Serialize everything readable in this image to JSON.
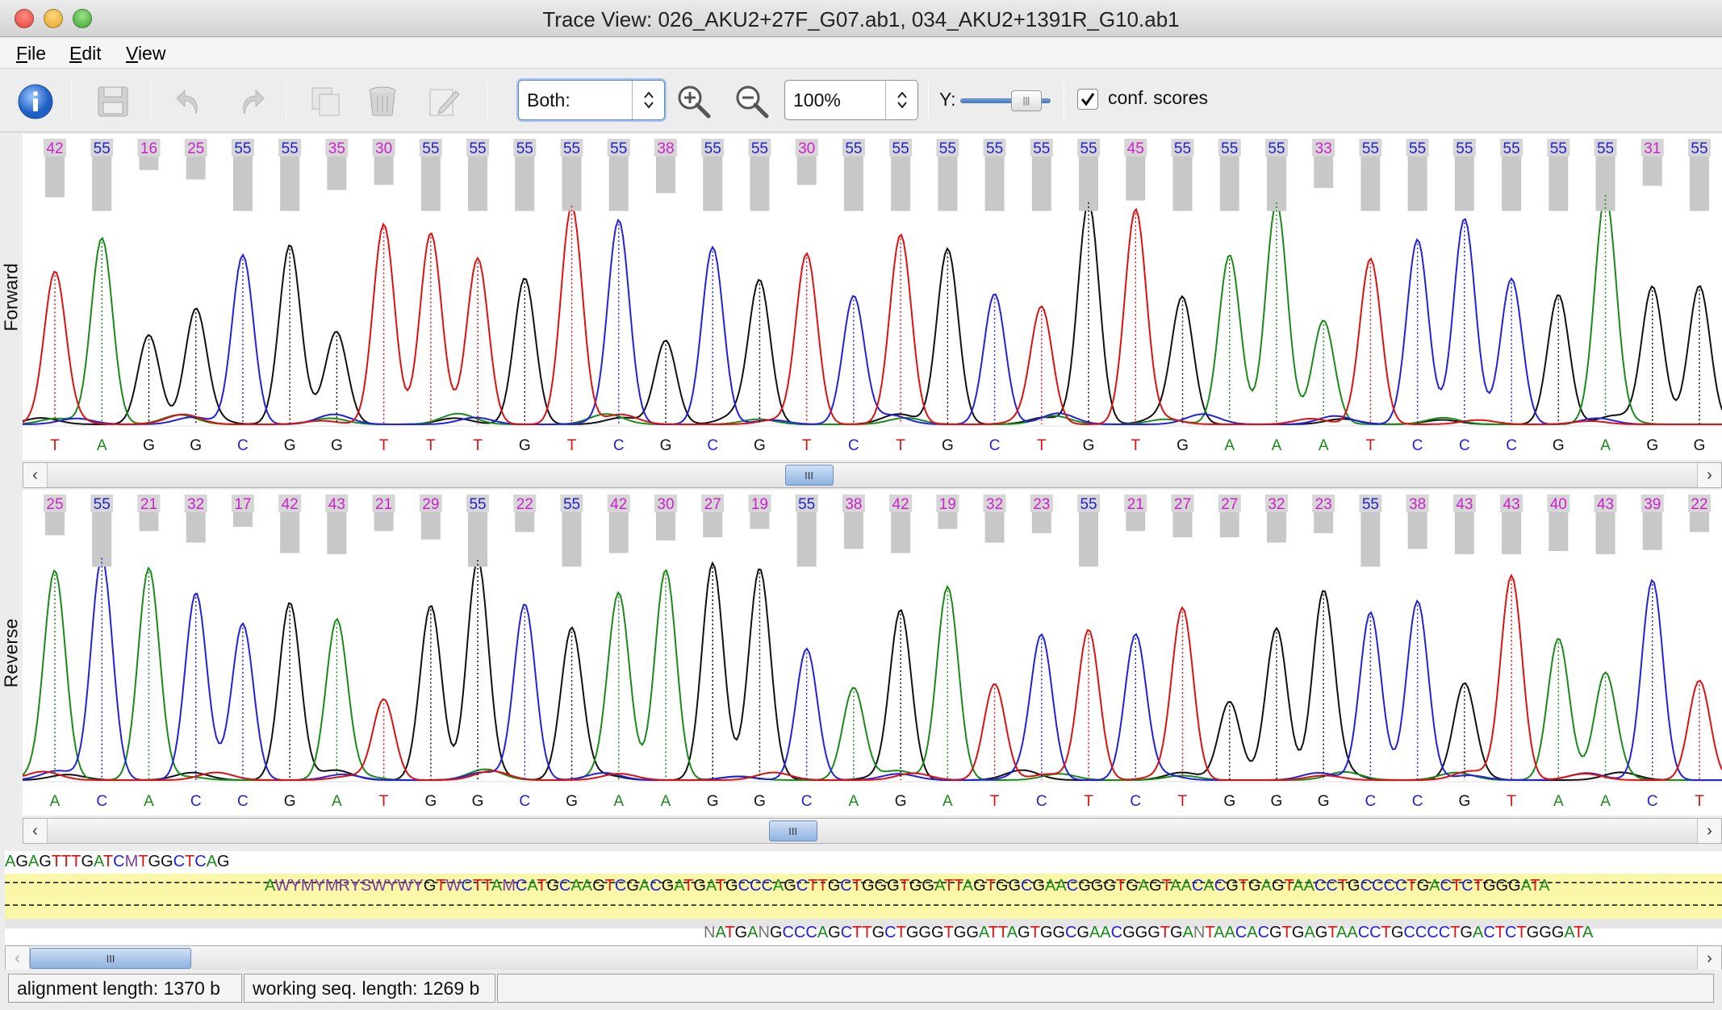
{
  "window": {
    "title": "Trace View: 026_AKU2+27F_G07.ab1, 034_AKU2+1391R_G10.ab1"
  },
  "menubar": {
    "items": [
      {
        "label": "File",
        "mnemonic": "F",
        "rest": "ile"
      },
      {
        "label": "Edit",
        "mnemonic": "E",
        "rest": "dit"
      },
      {
        "label": "View",
        "mnemonic": "V",
        "rest": "iew"
      }
    ]
  },
  "toolbar": {
    "strand_select": "Both:",
    "zoom_select": "100%",
    "y_label": "Y:",
    "y_scale_fraction": 0.85,
    "conf_label": "conf. scores",
    "conf_checked": true,
    "icons": [
      "info-icon",
      "save-icon",
      "undo-icon",
      "redo-icon",
      "copy-icon",
      "delete-icon",
      "edit-icon",
      "zoom-in-icon",
      "zoom-out-icon"
    ]
  },
  "colors": {
    "A": "#1a8a1a",
    "C": "#2222dd",
    "G": "#111111",
    "T": "#dd1111",
    "score": "#cc22cc",
    "score_high": "#2222cc",
    "bar": "#c8c8c8"
  },
  "forward": {
    "label": "Forward",
    "scores": [
      42,
      55,
      16,
      25,
      55,
      55,
      35,
      30,
      55,
      55,
      55,
      55,
      55,
      38,
      55,
      55,
      30,
      55,
      55,
      55,
      55,
      55,
      55,
      45,
      55,
      55,
      55,
      33,
      55,
      55,
      55,
      55,
      55,
      55,
      31,
      55
    ],
    "bases": [
      "T",
      "A",
      "G",
      "G",
      "C",
      "G",
      "G",
      "T",
      "T",
      "T",
      "G",
      "T",
      "C",
      "G",
      "C",
      "G",
      "T",
      "C",
      "T",
      "G",
      "C",
      "T",
      "G",
      "T",
      "G",
      "A",
      "A",
      "A",
      "T",
      "C",
      "C",
      "C",
      "G",
      "A",
      "G",
      "G"
    ],
    "scroll_position": 0.46
  },
  "reverse": {
    "label": "Reverse",
    "scores": [
      25,
      55,
      21,
      32,
      17,
      42,
      43,
      21,
      29,
      55,
      22,
      55,
      42,
      30,
      27,
      19,
      55,
      38,
      42,
      19,
      32,
      23,
      55,
      21,
      27,
      27,
      32,
      23,
      55,
      38,
      43,
      43,
      40,
      43,
      39,
      22
    ],
    "bases": [
      "A",
      "C",
      "A",
      "C",
      "C",
      "G",
      "A",
      "T",
      "G",
      "G",
      "C",
      "G",
      "A",
      "A",
      "G",
      "G",
      "C",
      "A",
      "G",
      "A",
      "T",
      "C",
      "T",
      "C",
      "T",
      "G",
      "G",
      "G",
      "C",
      "C",
      "G",
      "T",
      "A",
      "A",
      "C",
      "T"
    ],
    "scroll_position": 0.45
  },
  "alignment": {
    "line1": "AGAGTTTGATCMTGGCTCAG",
    "line2": "AWYMYMRYSWYWYGTWCTTAMCATGCAAGTCGACGATGATGCCCAGCTTGCTGGGTGGATTAGTGGCGAACGGGTGAGTAACACGTGAGTAACCTGCCCCTGACTCTGGGATA",
    "line3": "NATGANGCCCAGCTTGCTGGGTGGATTAGTGGCGAACGGGTGANTAACACGTGAGTAACCTGCCCCTGACTCTGGGATA",
    "scroll_position": 0.0
  },
  "status": {
    "alignment_length": "alignment length: 1370 b",
    "working_length": "working seq. length: 1269 b"
  }
}
